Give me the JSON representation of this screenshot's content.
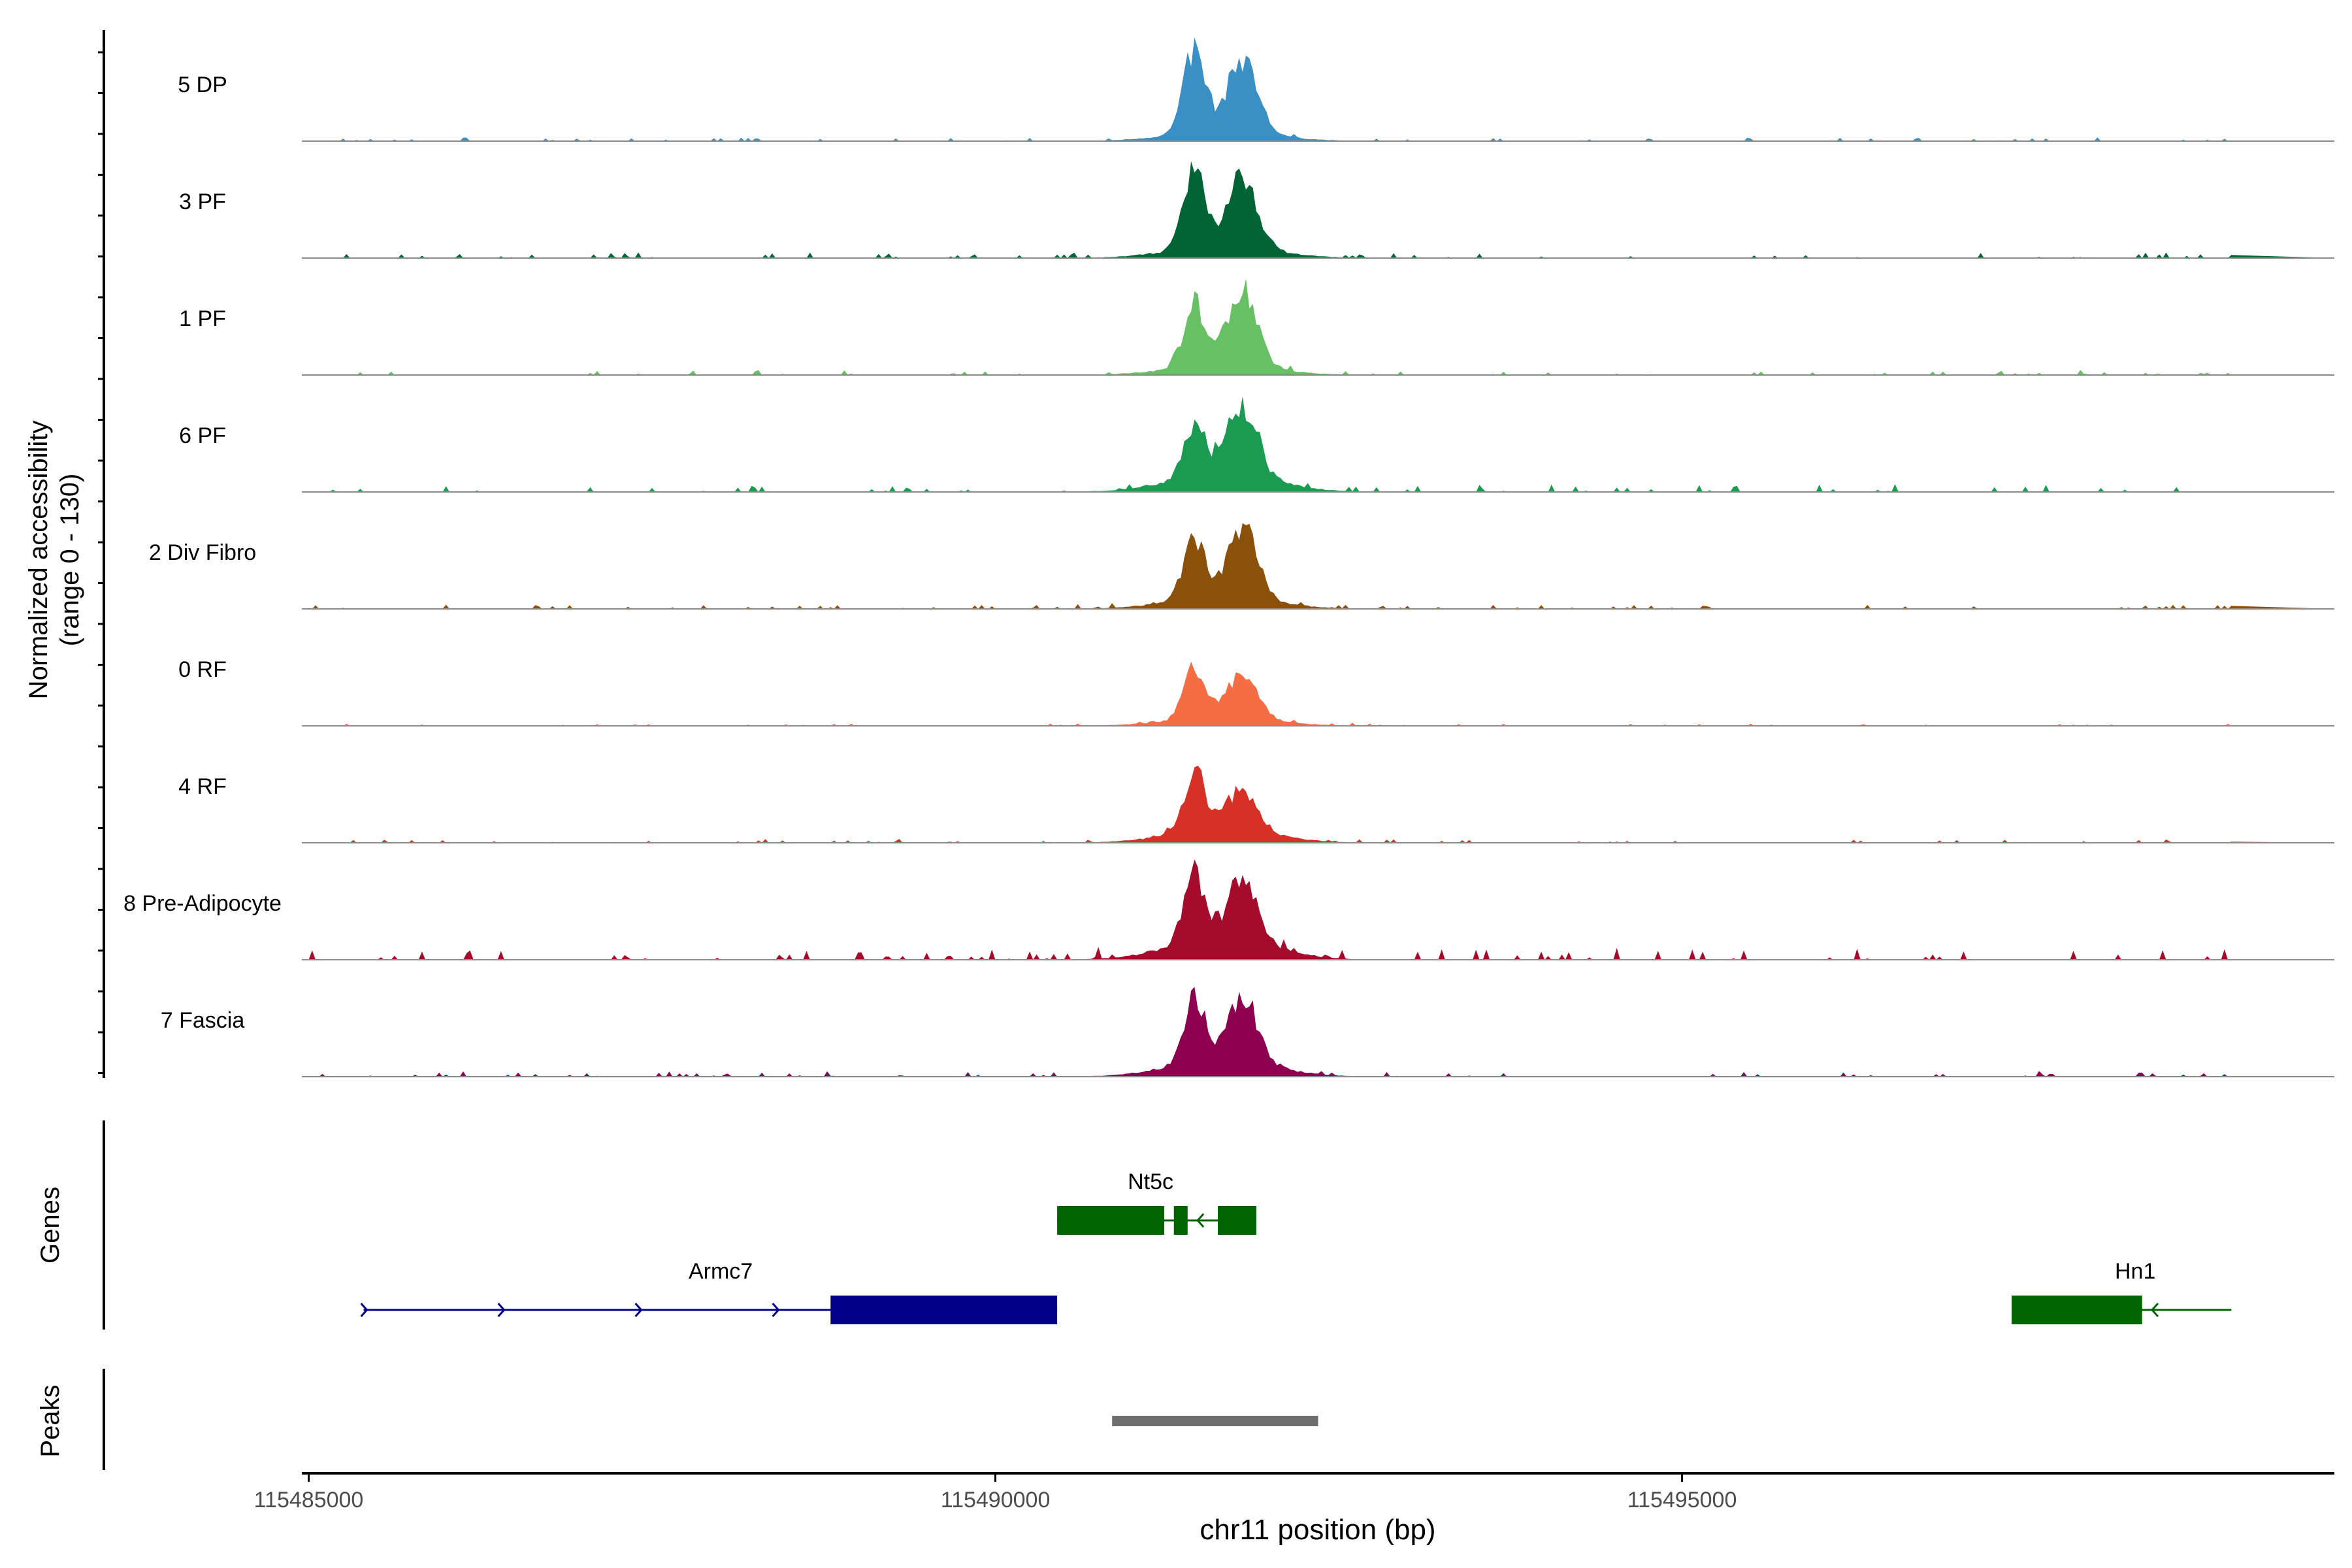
{
  "chart_data": {
    "type": "area",
    "ylabel_line1": "Normalized accessibility",
    "ylabel_line2": "(range 0 - 130)",
    "y_range": [
      0,
      130
    ],
    "xlabel": "chr11 position (bp)",
    "x_range": [
      115484950,
      115499750
    ],
    "x_ticks": [
      115485000,
      115490000,
      115495000
    ],
    "x_tick_labels": [
      "115485000",
      "115490000",
      "115495000"
    ],
    "peak_centers": [
      115491450,
      115491800
    ],
    "tracks": [
      {
        "name": "5 DP",
        "color": "#3a8fc4",
        "peak_heights": [
          95,
          85
        ],
        "noise": 4,
        "shoulder": 12
      },
      {
        "name": "3 PF",
        "color": "#006434",
        "peak_heights": [
          92,
          82
        ],
        "noise": 6,
        "shoulder": 14
      },
      {
        "name": "1 PF",
        "color": "#67c164",
        "peak_heights": [
          72,
          88
        ],
        "noise": 5,
        "shoulder": 12
      },
      {
        "name": "6 PF",
        "color": "#1b9a51",
        "peak_heights": [
          64,
          80
        ],
        "noise": 8,
        "shoulder": 22
      },
      {
        "name": "2 Div Fibro",
        "color": "#8b510b",
        "peak_heights": [
          68,
          80
        ],
        "noise": 5,
        "shoulder": 14
      },
      {
        "name": "0 RF",
        "color": "#f46d43",
        "peak_heights": [
          60,
          52
        ],
        "noise": 3,
        "shoulder": 10
      },
      {
        "name": "4 RF",
        "color": "#d73027",
        "peak_heights": [
          70,
          48
        ],
        "noise": 4,
        "shoulder": 16
      },
      {
        "name": "8 Pre-Adipocyte",
        "color": "#a50b2a",
        "peak_heights": [
          75,
          68
        ],
        "noise": 12,
        "shoulder": 25
      },
      {
        "name": "7 Fascia",
        "color": "#8d0050",
        "peak_heights": [
          72,
          75
        ],
        "noise": 6,
        "shoulder": 20
      }
    ],
    "genes": [
      {
        "name": "Nt5c",
        "color": "#006400",
        "strand": "-",
        "start": 115490450,
        "end": 115491900,
        "exons": [
          [
            115490450,
            115491230
          ],
          [
            115491300,
            115491400
          ],
          [
            115491620,
            115491900
          ]
        ]
      },
      {
        "name": "Armc7",
        "color": "#00008b",
        "strand": "+",
        "start": 115485400,
        "end": 115490450,
        "exons": [
          [
            115488800,
            115490450
          ]
        ]
      },
      {
        "name": "Hn1",
        "color": "#006400",
        "strand": "-",
        "start": 115497400,
        "end": 115499000,
        "exons": [
          [
            115497400,
            115498350
          ]
        ]
      }
    ],
    "peaks": [
      {
        "start": 115490850,
        "end": 115492350
      }
    ],
    "panel_labels": {
      "genes": "Genes",
      "peaks": "Peaks"
    }
  }
}
